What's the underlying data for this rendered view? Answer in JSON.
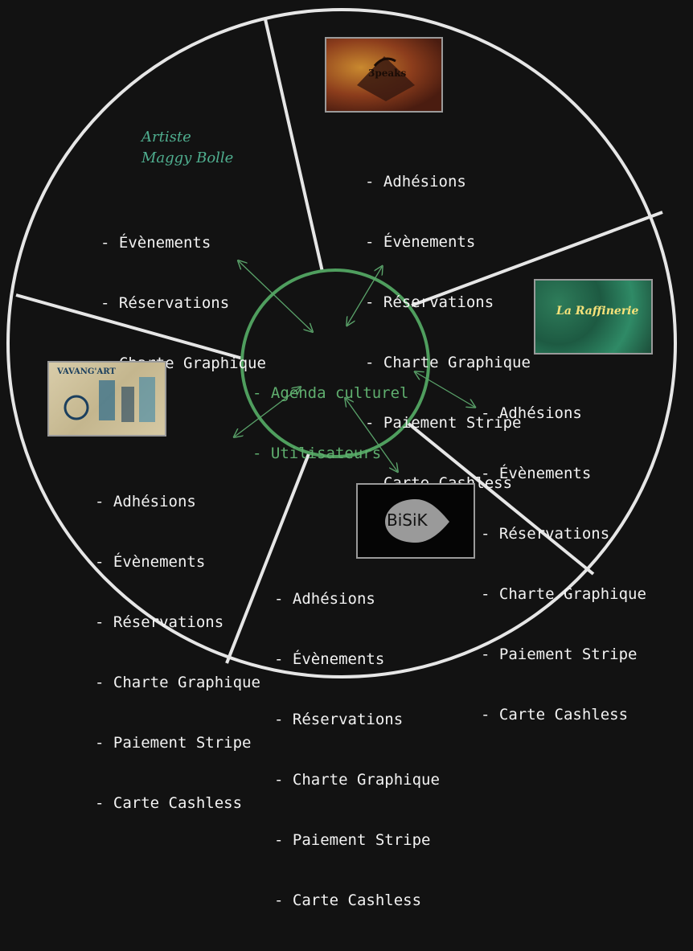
{
  "center": {
    "items": [
      "Agenda culturel",
      "Utilisateurs"
    ]
  },
  "artist": {
    "line1": "Artiste",
    "line2": "Maggy Bolle"
  },
  "lists": {
    "artist": [
      "Évènements",
      "Réservations",
      "Charte Graphique"
    ],
    "3peaks": [
      "Adhésions",
      "Évènements",
      "Réservations",
      "Charte Graphique",
      "Paiement Stripe",
      "Carte Cashless"
    ],
    "raffinerie": [
      "Adhésions",
      "Évènements",
      "Réservations",
      "Charte Graphique",
      "Paiement Stripe",
      "Carte Cashless"
    ],
    "bisik": [
      "Adhésions",
      "Évènements",
      "Réservations",
      "Charte Graphique",
      "Paiement Stripe",
      "Carte Cashless"
    ],
    "vavangart": [
      "Adhésions",
      "Évènements",
      "Réservations",
      "Charte Graphique",
      "Paiement Stripe",
      "Carte Cashless"
    ]
  },
  "logos": {
    "3peaks": "3peaks",
    "raffinerie": "La Raffinerie",
    "vavangart": "VAVANG'ART",
    "bisik": "BiSiK"
  },
  "colors": {
    "background": "#121212",
    "ring": "#e6e6e6",
    "center_circle": "#4f9e5e",
    "arrow": "#5aa36a",
    "text": "#f2f2f2",
    "center_text": "#5fae6e",
    "artist_text": "#4fae8f"
  }
}
